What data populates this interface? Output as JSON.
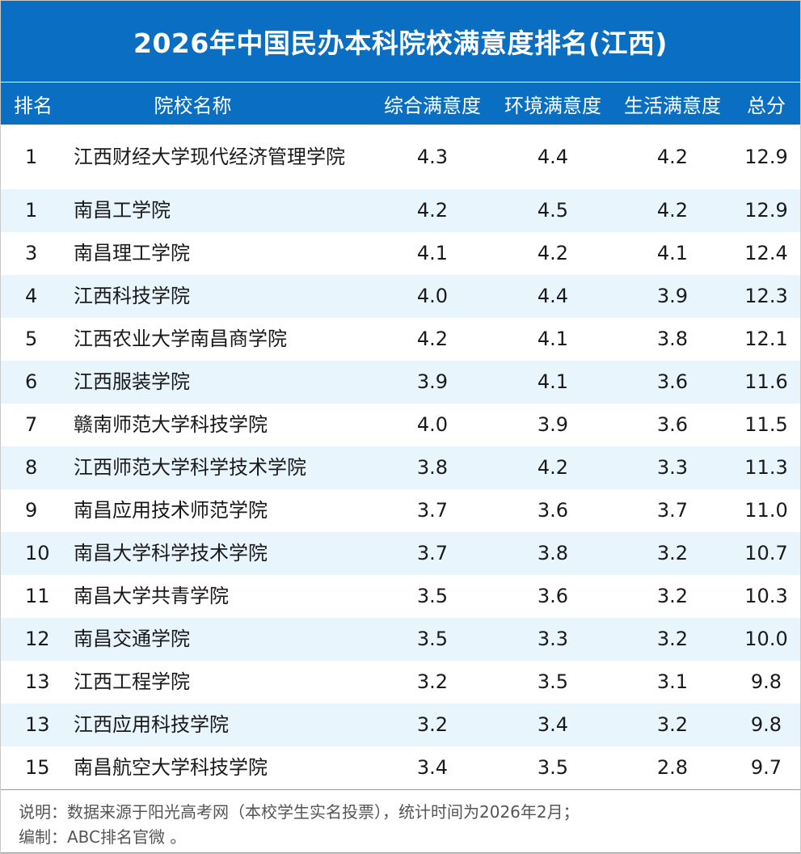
{
  "title": "2026年中国民办本科院校满意度排名(江西)",
  "table": {
    "headers": {
      "rank": "排名",
      "name": "院校名称",
      "overall": "综合满意度",
      "environment": "环境满意度",
      "life": "生活满意度",
      "total": "总分"
    },
    "rows": [
      {
        "rank": "1",
        "name": "江西财经大学现代经济管理学院",
        "overall": "4.3",
        "environment": "4.4",
        "life": "4.2",
        "total": "12.9"
      },
      {
        "rank": "1",
        "name": "南昌工学院",
        "overall": "4.2",
        "environment": "4.5",
        "life": "4.2",
        "total": "12.9"
      },
      {
        "rank": "3",
        "name": "南昌理工学院",
        "overall": "4.1",
        "environment": "4.2",
        "life": "4.1",
        "total": "12.4"
      },
      {
        "rank": "4",
        "name": "江西科技学院",
        "overall": "4.0",
        "environment": "4.4",
        "life": "3.9",
        "total": "12.3"
      },
      {
        "rank": "5",
        "name": "江西农业大学南昌商学院",
        "overall": "4.2",
        "environment": "4.1",
        "life": "3.8",
        "total": "12.1"
      },
      {
        "rank": "6",
        "name": "江西服装学院",
        "overall": "3.9",
        "environment": "4.1",
        "life": "3.6",
        "total": "11.6"
      },
      {
        "rank": "7",
        "name": "赣南师范大学科技学院",
        "overall": "4.0",
        "environment": "3.9",
        "life": "3.6",
        "total": "11.5"
      },
      {
        "rank": "8",
        "name": "江西师范大学科学技术学院",
        "overall": "3.8",
        "environment": "4.2",
        "life": "3.3",
        "total": "11.3"
      },
      {
        "rank": "9",
        "name": "南昌应用技术师范学院",
        "overall": "3.7",
        "environment": "3.6",
        "life": "3.7",
        "total": "11.0"
      },
      {
        "rank": "10",
        "name": "南昌大学科学技术学院",
        "overall": "3.7",
        "environment": "3.8",
        "life": "3.2",
        "total": "10.7"
      },
      {
        "rank": "11",
        "name": "南昌大学共青学院",
        "overall": "3.5",
        "environment": "3.6",
        "life": "3.2",
        "total": "10.3"
      },
      {
        "rank": "12",
        "name": "南昌交通学院",
        "overall": "3.5",
        "environment": "3.3",
        "life": "3.2",
        "total": "10.0"
      },
      {
        "rank": "13",
        "name": "江西工程学院",
        "overall": "3.2",
        "environment": "3.5",
        "life": "3.1",
        "total": "9.8"
      },
      {
        "rank": "13",
        "name": "江西应用科技学院",
        "overall": "3.2",
        "environment": "3.4",
        "life": "3.2",
        "total": "9.8"
      },
      {
        "rank": "15",
        "name": "南昌航空大学科技学院",
        "overall": "3.4",
        "environment": "3.5",
        "life": "2.8",
        "total": "9.7"
      }
    ]
  },
  "notes": {
    "source": "说明：数据来源于阳光高考网（本校学生实名投票），统计时间为2026年2月；",
    "editor": "编制：ABC排名官微 。"
  },
  "colors": {
    "header_blue": "#0a6fc2",
    "stripe_light_blue": "#e8f5fd"
  }
}
